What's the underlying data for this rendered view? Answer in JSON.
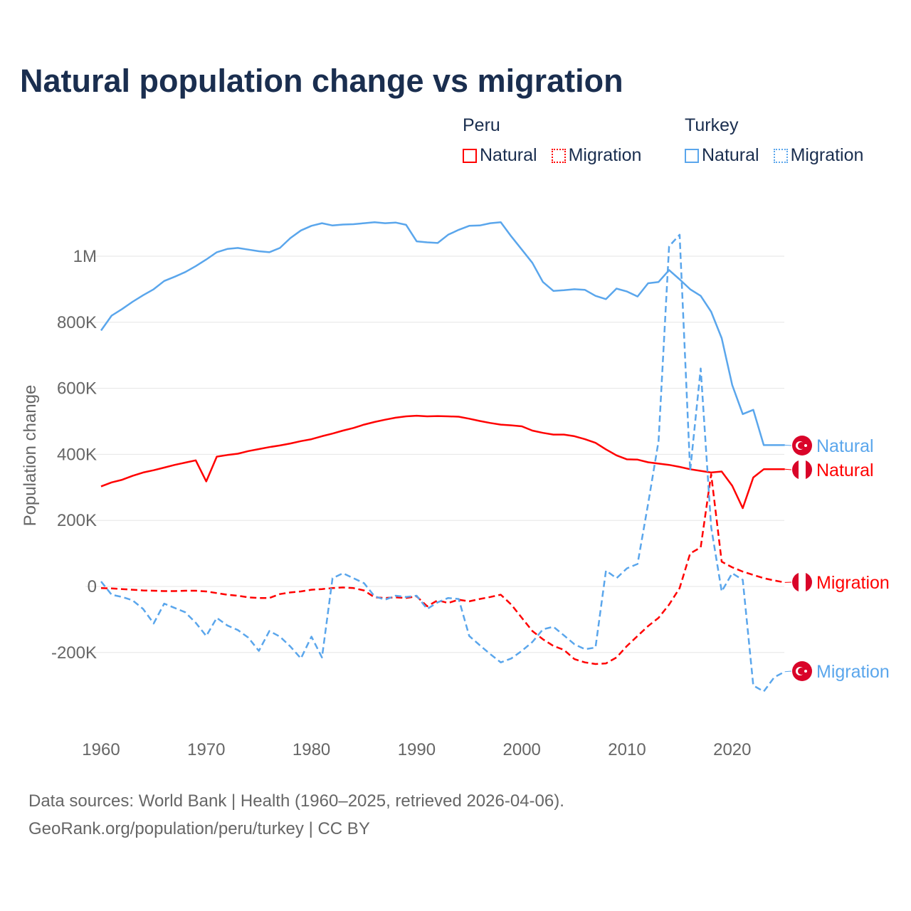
{
  "title": "Natural population change vs migration",
  "legend": {
    "groups": [
      {
        "name": "Peru",
        "items": [
          "Natural",
          "Migration"
        ],
        "color": "#ff0000"
      },
      {
        "name": "Turkey",
        "items": [
          "Natural",
          "Migration"
        ],
        "color": "#5aa6ec"
      }
    ]
  },
  "footer": {
    "line1": "Data sources: World Bank | Health (1960–2025, retrieved 2026-04-06).",
    "line2": "GeoRank.org/population/peru/turkey | CC BY"
  },
  "chart_data": {
    "type": "line",
    "title": "Natural population change vs migration",
    "xlabel": "",
    "ylabel": "Population change",
    "xlim": [
      1960,
      2025
    ],
    "ylim": [
      -360000,
      1120000
    ],
    "grid": true,
    "legend_position": "top-right",
    "x_ticks": [
      1960,
      1970,
      1980,
      1990,
      2000,
      2010,
      2020
    ],
    "x_tick_labels": [
      "1960",
      "1970",
      "1980",
      "1990",
      "2000",
      "2010",
      "2020"
    ],
    "y_ticks": [
      -200000,
      0,
      200000,
      400000,
      600000,
      800000,
      1000000
    ],
    "y_tick_labels": [
      "-200K",
      "0",
      "200K",
      "400K",
      "600K",
      "800K",
      "1M"
    ],
    "x_start": 1960,
    "series": [
      {
        "name": "Turkey Natural",
        "end_label": "Natural",
        "country": "Turkey",
        "color": "#5aa6ec",
        "dashed": false,
        "values_k": [
          775,
          820,
          840,
          862,
          882,
          900,
          925,
          938,
          952,
          970,
          990,
          1012,
          1022,
          1025,
          1020,
          1015,
          1012,
          1025,
          1055,
          1078,
          1092,
          1100,
          1093,
          1096,
          1097,
          1100,
          1103,
          1100,
          1102,
          1095,
          1045,
          1042,
          1040,
          1065,
          1080,
          1092,
          1093,
          1100,
          1103,
          1060,
          1020,
          980,
          922,
          895,
          897,
          900,
          898,
          880,
          870,
          902,
          893,
          878,
          918,
          922,
          958,
          930,
          900,
          880,
          832,
          752,
          610,
          522,
          535,
          428,
          428,
          428
        ]
      },
      {
        "name": "Peru Natural",
        "end_label": "Natural",
        "country": "Peru",
        "color": "#ff0000",
        "dashed": false,
        "values_k": [
          303,
          315,
          323,
          335,
          345,
          352,
          360,
          368,
          375,
          382,
          318,
          393,
          398,
          402,
          410,
          416,
          422,
          427,
          433,
          440,
          446,
          455,
          463,
          472,
          480,
          490,
          498,
          505,
          511,
          515,
          517,
          515,
          516,
          515,
          514,
          508,
          501,
          495,
          490,
          488,
          485,
          472,
          465,
          460,
          460,
          455,
          446,
          435,
          415,
          397,
          385,
          384,
          376,
          372,
          368,
          362,
          355,
          350,
          345,
          348,
          305,
          237,
          330,
          355,
          355,
          355
        ]
      },
      {
        "name": "Peru Migration",
        "end_label": "Migration",
        "country": "Peru",
        "color": "#ff0000",
        "dashed": true,
        "values_k": [
          -5,
          -6,
          -8,
          -10,
          -12,
          -13,
          -14,
          -14,
          -13,
          -13,
          -15,
          -20,
          -25,
          -28,
          -33,
          -35,
          -35,
          -23,
          -18,
          -15,
          -10,
          -8,
          -5,
          -3,
          -5,
          -12,
          -33,
          -35,
          -33,
          -35,
          -30,
          -60,
          -42,
          -50,
          -40,
          -45,
          -38,
          -32,
          -25,
          -55,
          -95,
          -135,
          -160,
          -180,
          -192,
          -220,
          -230,
          -235,
          -233,
          -215,
          -180,
          -150,
          -120,
          -95,
          -55,
          -5,
          100,
          118,
          340,
          75,
          58,
          45,
          35,
          25,
          18,
          12
        ]
      },
      {
        "name": "Turkey Migration",
        "end_label": "Migration",
        "country": "Turkey",
        "color": "#5aa6ec",
        "dashed": true,
        "values_k": [
          15,
          -25,
          -32,
          -42,
          -68,
          -112,
          -52,
          -65,
          -78,
          -110,
          -150,
          -95,
          -118,
          -132,
          -155,
          -195,
          -135,
          -152,
          -182,
          -218,
          -152,
          -215,
          25,
          40,
          25,
          10,
          -30,
          -40,
          -28,
          -32,
          -28,
          -68,
          -48,
          -35,
          -38,
          -150,
          -178,
          -205,
          -230,
          -218,
          -195,
          -168,
          -130,
          -122,
          -148,
          -175,
          -190,
          -185,
          48,
          25,
          55,
          68,
          250,
          440,
          1030,
          1065,
          350,
          660,
          180,
          -15,
          40,
          20,
          -300,
          -318,
          -275,
          -258
        ]
      }
    ]
  }
}
